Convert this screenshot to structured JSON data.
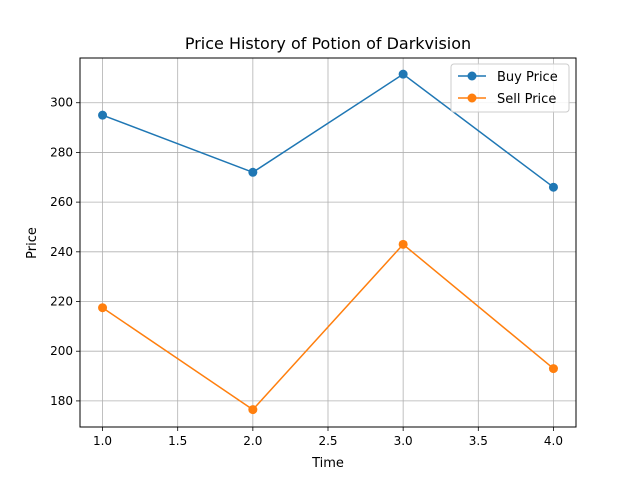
{
  "chart_data": {
    "type": "line",
    "title": "Price History of Potion of Darkvision",
    "xlabel": "Time",
    "ylabel": "Price",
    "x": [
      1.0,
      2.0,
      3.0,
      4.0
    ],
    "series": [
      {
        "name": "Buy Price",
        "values": [
          295,
          272,
          311.5,
          266
        ],
        "color": "#1f77b4"
      },
      {
        "name": "Sell Price",
        "values": [
          217.5,
          176.5,
          243,
          193
        ],
        "color": "#ff7f0e"
      }
    ],
    "xlim": [
      0.85,
      4.15
    ],
    "ylim": [
      169.5,
      318
    ],
    "xticks": [
      "1.0",
      "1.5",
      "2.0",
      "2.5",
      "3.0",
      "3.5",
      "4.0"
    ],
    "yticks": [
      "180",
      "200",
      "220",
      "240",
      "260",
      "280",
      "300"
    ],
    "grid": true,
    "legend_position": "top-right"
  }
}
